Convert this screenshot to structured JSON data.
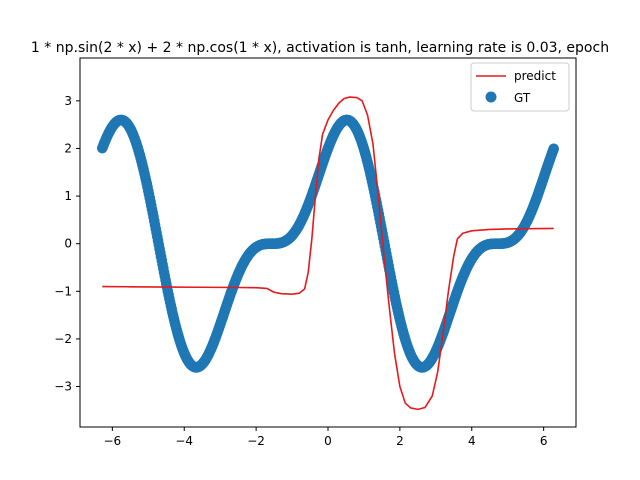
{
  "chart_data": {
    "type": "scatter",
    "title": "1 * np.sin(2 * x) + 2 * np.cos(1 * x), activation is tanh, learning rate is 0.03, epoch",
    "xlabel": "",
    "ylabel": "",
    "xlim": [
      -6.9,
      6.9
    ],
    "ylim": [
      -3.85,
      3.9
    ],
    "xticks": [
      -6,
      -4,
      -2,
      0,
      2,
      4,
      6
    ],
    "yticks": [
      -3,
      -2,
      -1,
      0,
      1,
      2,
      3
    ],
    "grid": false,
    "legend_position": "top-right",
    "series": [
      {
        "name": "predict",
        "kind": "line",
        "color": "#e41a1c",
        "points": [
          [
            -6.28,
            -0.9
          ],
          [
            -5.5,
            -0.905
          ],
          [
            -4.5,
            -0.91
          ],
          [
            -3.5,
            -0.915
          ],
          [
            -2.5,
            -0.92
          ],
          [
            -2.0,
            -0.925
          ],
          [
            -1.7,
            -0.94
          ],
          [
            -1.5,
            -1.02
          ],
          [
            -1.3,
            -1.05
          ],
          [
            -1.0,
            -1.06
          ],
          [
            -0.8,
            -1.04
          ],
          [
            -0.65,
            -0.95
          ],
          [
            -0.55,
            -0.6
          ],
          [
            -0.45,
            0.1
          ],
          [
            -0.35,
            1.0
          ],
          [
            -0.25,
            1.8
          ],
          [
            -0.15,
            2.3
          ],
          [
            0.0,
            2.6
          ],
          [
            0.15,
            2.8
          ],
          [
            0.3,
            2.95
          ],
          [
            0.45,
            3.05
          ],
          [
            0.6,
            3.08
          ],
          [
            0.8,
            3.07
          ],
          [
            0.95,
            3.0
          ],
          [
            1.1,
            2.7
          ],
          [
            1.25,
            2.1
          ],
          [
            1.4,
            1.0
          ],
          [
            1.55,
            -0.2
          ],
          [
            1.7,
            -1.3
          ],
          [
            1.85,
            -2.3
          ],
          [
            2.0,
            -3.0
          ],
          [
            2.15,
            -3.35
          ],
          [
            2.3,
            -3.45
          ],
          [
            2.5,
            -3.48
          ],
          [
            2.7,
            -3.44
          ],
          [
            2.9,
            -3.2
          ],
          [
            3.05,
            -2.7
          ],
          [
            3.2,
            -1.9
          ],
          [
            3.35,
            -1.0
          ],
          [
            3.5,
            -0.25
          ],
          [
            3.6,
            0.1
          ],
          [
            3.75,
            0.22
          ],
          [
            4.0,
            0.27
          ],
          [
            4.5,
            0.3
          ],
          [
            5.0,
            0.31
          ],
          [
            5.5,
            0.315
          ],
          [
            6.28,
            0.32
          ]
        ]
      },
      {
        "name": "GT",
        "kind": "scatter",
        "color": "#1f77b4",
        "function": "1 * np.sin(2 * x) + 2 * np.cos(1 * x)",
        "x_range": [
          -6.28,
          6.28
        ],
        "n_points": 600
      }
    ]
  }
}
